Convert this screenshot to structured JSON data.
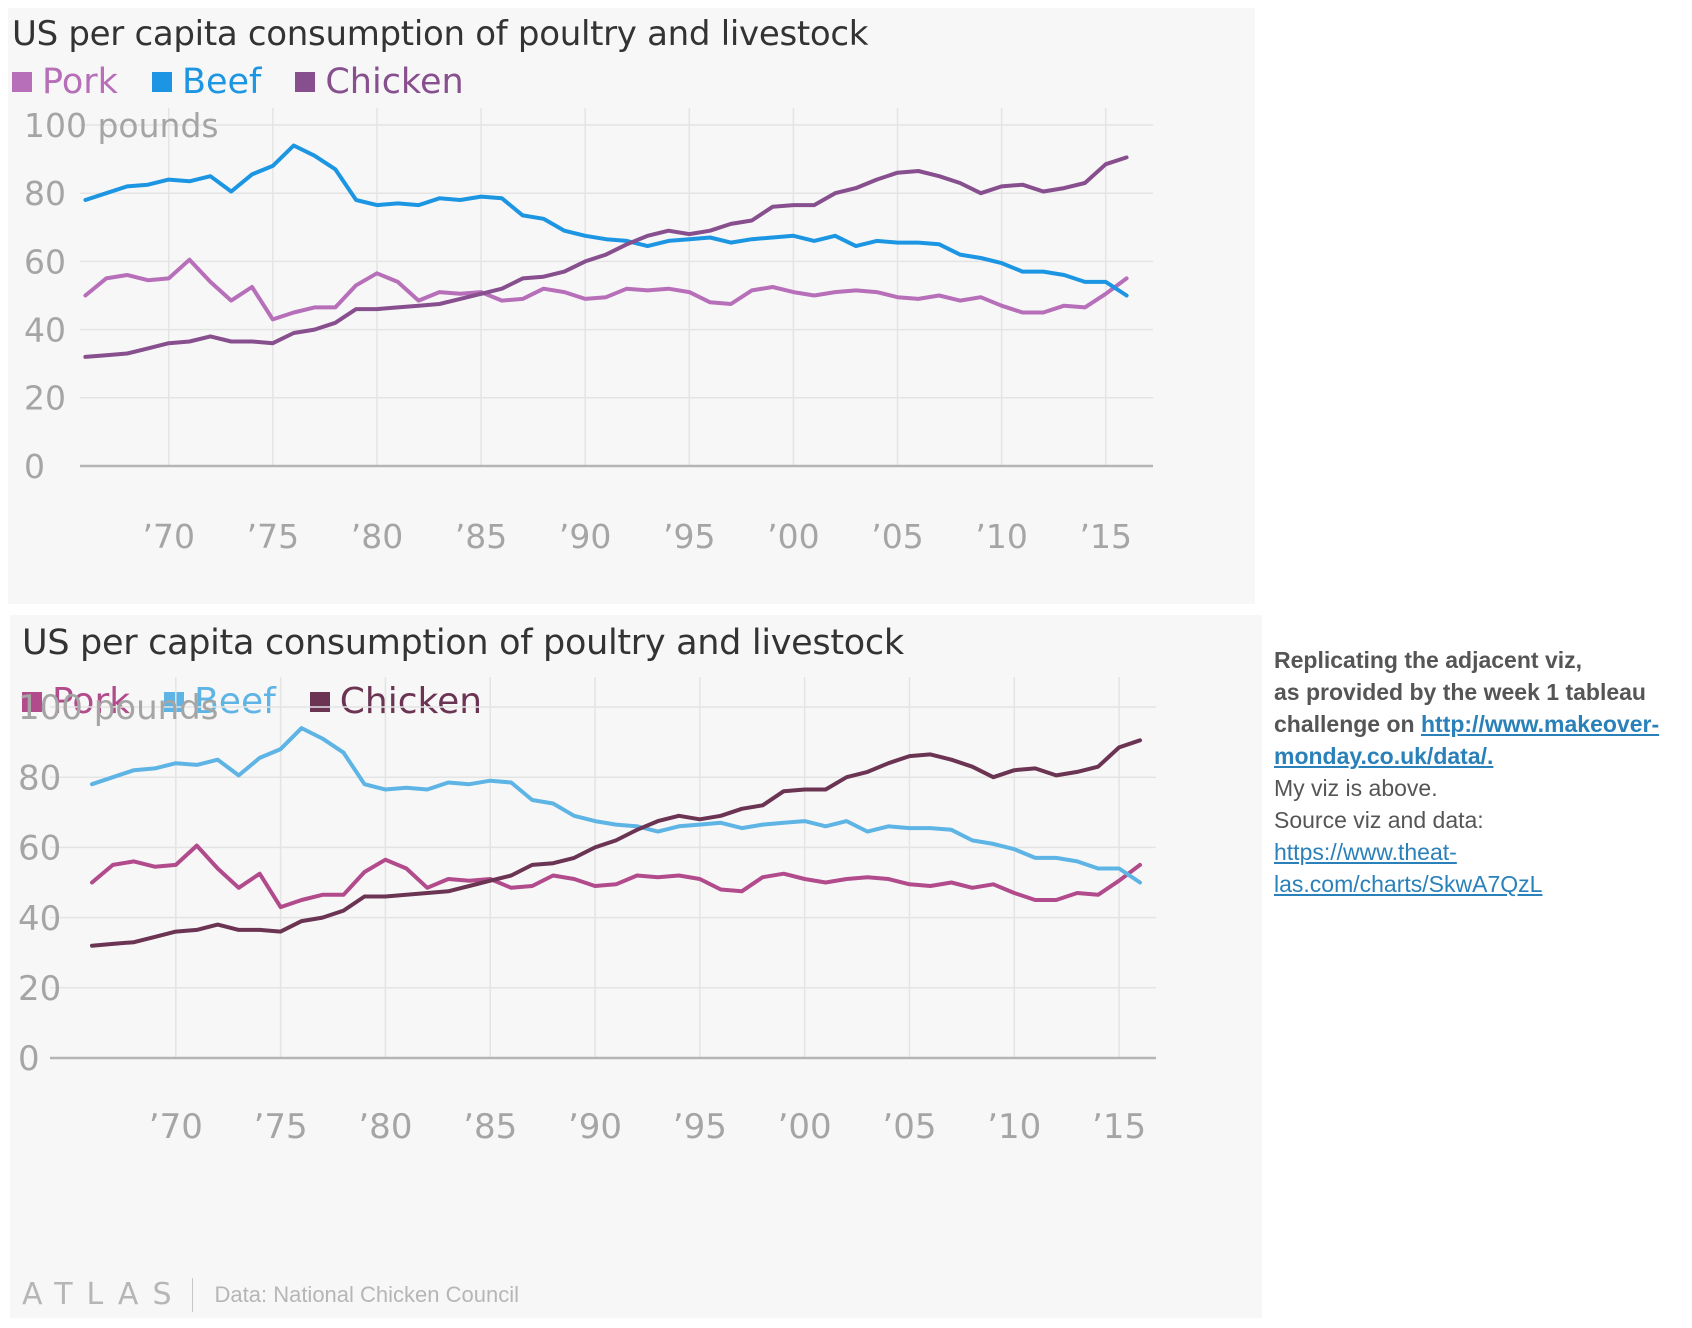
{
  "colors": {
    "top": {
      "pork": "#b66fb8",
      "beef": "#1c96e2",
      "chicken": "#874f8e"
    },
    "bottom": {
      "pork": "#b14b8b",
      "beef": "#5eb4e4",
      "chicken": "#6b3453"
    },
    "axis_text": "#a5a5a5",
    "grid": "#e4e4e4",
    "baseline": "#b5b5b5"
  },
  "top_panel": {
    "title": "US per capita consumption of poultry and livestock"
  },
  "bottom_panel": {
    "title": "US per capita consumption of poultry and livestock",
    "brand": "ATLAS",
    "source": "Data: National Chicken Council"
  },
  "note": {
    "line1": "Replicating the adjacent viz,",
    "line2": "as provided by the week 1 tableau",
    "line3_prefix": "challenge on ",
    "link1_a": "http://www.makeover-",
    "link1_b": "monday.co.uk/data/.",
    "line4": "My viz is above.",
    "line5": "Source viz and data:",
    "link2_a": "https://www.theat-",
    "link2_b": "las.com/charts/SkwA7QzL"
  },
  "chart_data": {
    "type": "line",
    "title": "US per capita consumption of poultry and livestock",
    "xlabel": "",
    "ylabel": "pounds",
    "ylim": [
      0,
      100
    ],
    "xlim": [
      1965,
      2017
    ],
    "y_ticks": [
      0,
      20,
      40,
      60,
      80,
      100
    ],
    "y_tick_labels": [
      "0",
      "20",
      "40",
      "60",
      "80",
      "100 pounds"
    ],
    "x_ticks": [
      1970,
      1975,
      1980,
      1985,
      1990,
      1995,
      2000,
      2005,
      2010,
      2015
    ],
    "x_tick_labels": [
      "’70",
      "’75",
      "’80",
      "’85",
      "’90",
      "’95",
      "’00",
      "’05",
      "’10",
      "’15"
    ],
    "grid": true,
    "legend": "top-left",
    "x": [
      1966,
      1967,
      1968,
      1969,
      1970,
      1971,
      1972,
      1973,
      1974,
      1975,
      1976,
      1977,
      1978,
      1979,
      1980,
      1981,
      1982,
      1983,
      1984,
      1985,
      1986,
      1987,
      1988,
      1989,
      1990,
      1991,
      1992,
      1993,
      1994,
      1995,
      1996,
      1997,
      1998,
      1999,
      2000,
      2001,
      2002,
      2003,
      2004,
      2005,
      2006,
      2007,
      2008,
      2009,
      2010,
      2011,
      2012,
      2013,
      2014,
      2015,
      2016
    ],
    "series": [
      {
        "name": "Pork",
        "key": "pork",
        "values": [
          50,
          55,
          56,
          54.5,
          55,
          60.5,
          54,
          48.5,
          52.5,
          43,
          45,
          46.5,
          46.5,
          53,
          56.5,
          54,
          48.5,
          51,
          50.5,
          51,
          48.5,
          49,
          52,
          51,
          49,
          49.5,
          52,
          51.5,
          52,
          51,
          48,
          47.5,
          51.5,
          52.5,
          51,
          50,
          51,
          51.5,
          51,
          49.5,
          49,
          50,
          48.5,
          49.5,
          47,
          45,
          45,
          47,
          46.5,
          50.5,
          55
        ]
      },
      {
        "name": "Beef",
        "key": "beef",
        "values": [
          78,
          80,
          82,
          82.5,
          84,
          83.5,
          85,
          80.5,
          85.5,
          88,
          94,
          91,
          87,
          78,
          76.5,
          77,
          76.5,
          78.5,
          78,
          79,
          78.5,
          73.5,
          72.5,
          69,
          67.5,
          66.5,
          66,
          64.5,
          66,
          66.5,
          67,
          65.5,
          66.5,
          67,
          67.5,
          66,
          67.5,
          64.5,
          66,
          65.5,
          65.5,
          65,
          62,
          61,
          59.5,
          57,
          57,
          56,
          54,
          54,
          50
        ]
      },
      {
        "name": "Chicken",
        "key": "chicken",
        "values": [
          32,
          32.5,
          33,
          34.5,
          36,
          36.5,
          38,
          36.5,
          36.5,
          36,
          39,
          40,
          42,
          46,
          46,
          46.5,
          47,
          47.5,
          49,
          50.5,
          52,
          55,
          55.5,
          57,
          60,
          62,
          65,
          67.5,
          69,
          68,
          69,
          71,
          72,
          76,
          76.5,
          76.5,
          80,
          81.5,
          84,
          86,
          86.5,
          85,
          83,
          80,
          82,
          82.5,
          80.5,
          81.5,
          83,
          88.5,
          90.5
        ]
      }
    ]
  }
}
